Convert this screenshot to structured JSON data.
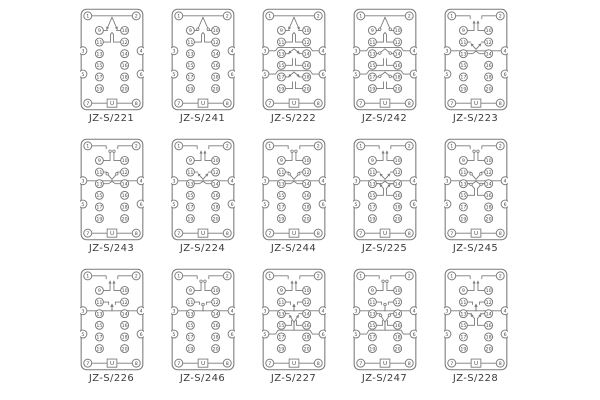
{
  "colors": {
    "line": "#7a7a7a",
    "terminal_text": "#4a4a4a",
    "label_text": "#3c3c3c",
    "background": "#ffffff"
  },
  "u_label": "U",
  "terminal_labels": [
    "1",
    "2",
    "3",
    "4",
    "5",
    "6",
    "7",
    "8",
    "9",
    "10",
    "11",
    "12",
    "13",
    "14",
    "15",
    "16",
    "17",
    "18",
    "19",
    "20"
  ],
  "diagrams": [
    {
      "label": "JZ-S/221",
      "style": "arrow",
      "contacts": [
        {
          "kind": "co",
          "common": 1,
          "a": 9,
          "b": 11
        },
        {
          "kind": "co",
          "common": 2,
          "a": 10,
          "b": 12
        }
      ]
    },
    {
      "label": "JZ-S/241",
      "style": "hook",
      "contacts": [
        {
          "kind": "co",
          "common": 1,
          "a": 9,
          "b": 11
        },
        {
          "kind": "co",
          "common": 2,
          "a": 10,
          "b": 12
        }
      ]
    },
    {
      "label": "JZ-S/222",
      "style": "arrow",
      "contacts": [
        {
          "kind": "co",
          "common": 1,
          "a": 9,
          "b": 11
        },
        {
          "kind": "co",
          "common": 2,
          "a": 10,
          "b": 12
        },
        {
          "kind": "co",
          "common": 3,
          "a": 13,
          "b": 15
        },
        {
          "kind": "co",
          "common": 4,
          "a": 14,
          "b": 16
        },
        {
          "kind": "co",
          "common": 5,
          "a": 17,
          "b": 19
        },
        {
          "kind": "co",
          "common": 6,
          "a": 18,
          "b": 20
        }
      ]
    },
    {
      "label": "JZ-S/242",
      "style": "hook",
      "contacts": [
        {
          "kind": "co",
          "common": 1,
          "a": 9,
          "b": 11
        },
        {
          "kind": "co",
          "common": 2,
          "a": 10,
          "b": 12
        },
        {
          "kind": "co",
          "common": 3,
          "a": 13,
          "b": 15
        },
        {
          "kind": "co",
          "common": 4,
          "a": 14,
          "b": 16
        },
        {
          "kind": "co",
          "common": 5,
          "a": 17,
          "b": 19
        },
        {
          "kind": "co",
          "common": 6,
          "a": 18,
          "b": 20
        }
      ]
    },
    {
      "label": "JZ-S/223",
      "style": "arrow",
      "contacts": [
        {
          "kind": "top",
          "a": 1,
          "b": 9
        },
        {
          "kind": "top",
          "a": 2,
          "b": 10
        },
        {
          "kind": "co",
          "common": 3,
          "a": 11,
          "b": 13
        },
        {
          "kind": "co",
          "common": 4,
          "a": 12,
          "b": 14
        }
      ]
    },
    {
      "label": "JZ-S/243",
      "style": "hook",
      "contacts": [
        {
          "kind": "top",
          "a": 1,
          "b": 9
        },
        {
          "kind": "top",
          "a": 2,
          "b": 10
        },
        {
          "kind": "co",
          "common": 3,
          "a": 11,
          "b": 13
        },
        {
          "kind": "co",
          "common": 4,
          "a": 12,
          "b": 14
        }
      ]
    },
    {
      "label": "JZ-S/224",
      "style": "arrow",
      "contacts": [
        {
          "kind": "top",
          "a": 1,
          "b": 9
        },
        {
          "kind": "top",
          "a": 2,
          "b": 10
        },
        {
          "kind": "co",
          "common": 3,
          "a": 11,
          "b": 13
        },
        {
          "kind": "co",
          "common": 4,
          "a": 12,
          "b": 14
        }
      ]
    },
    {
      "label": "JZ-S/244",
      "style": "hook",
      "contacts": [
        {
          "kind": "top",
          "a": 1,
          "b": 9
        },
        {
          "kind": "top",
          "a": 2,
          "b": 10
        },
        {
          "kind": "co",
          "common": 3,
          "a": 11,
          "b": 13
        },
        {
          "kind": "co",
          "common": 4,
          "a": 12,
          "b": 14
        }
      ]
    },
    {
      "label": "JZ-S/225",
      "style": "arrow",
      "contacts": [
        {
          "kind": "top",
          "a": 1,
          "b": 9
        },
        {
          "kind": "top",
          "a": 2,
          "b": 10
        },
        {
          "kind": "co",
          "common": 3,
          "a": 11,
          "b": 13
        },
        {
          "kind": "co",
          "common": 4,
          "a": 12,
          "b": 14
        },
        {
          "kind": "pair",
          "a": 13,
          "b": 15
        },
        {
          "kind": "pair",
          "a": 14,
          "b": 16
        }
      ]
    },
    {
      "label": "JZ-S/245",
      "style": "hook",
      "contacts": [
        {
          "kind": "top",
          "a": 1,
          "b": 9
        },
        {
          "kind": "top",
          "a": 2,
          "b": 10
        },
        {
          "kind": "co",
          "common": 3,
          "a": 11,
          "b": 13
        },
        {
          "kind": "co",
          "common": 4,
          "a": 12,
          "b": 14
        },
        {
          "kind": "pair",
          "a": 13,
          "b": 15
        },
        {
          "kind": "pair",
          "a": 14,
          "b": 16
        }
      ]
    },
    {
      "label": "JZ-S/226",
      "style": "arrow",
      "contacts": [
        {
          "kind": "top",
          "a": 1,
          "b": 9
        },
        {
          "kind": "top",
          "a": 2,
          "b": 10
        },
        {
          "kind": "mid",
          "a": 3,
          "b": 11
        },
        {
          "kind": "mid",
          "a": 4,
          "b": 12
        }
      ]
    },
    {
      "label": "JZ-S/246",
      "style": "hook",
      "contacts": [
        {
          "kind": "top",
          "a": 1,
          "b": 9
        },
        {
          "kind": "top",
          "a": 2,
          "b": 10
        },
        {
          "kind": "mid",
          "a": 3,
          "b": 11
        },
        {
          "kind": "mid",
          "a": 4,
          "b": 12
        }
      ]
    },
    {
      "label": "JZ-S/227",
      "style": "arrow",
      "contacts": [
        {
          "kind": "top",
          "a": 1,
          "b": 9
        },
        {
          "kind": "top",
          "a": 2,
          "b": 10
        },
        {
          "kind": "mid",
          "a": 3,
          "b": 11
        },
        {
          "kind": "mid",
          "a": 4,
          "b": 12
        },
        {
          "kind": "co",
          "common": 5,
          "a": 13,
          "b": 15
        },
        {
          "kind": "co",
          "common": 6,
          "a": 14,
          "b": 16
        }
      ]
    },
    {
      "label": "JZ-S/247",
      "style": "hook",
      "contacts": [
        {
          "kind": "top",
          "a": 1,
          "b": 9
        },
        {
          "kind": "top",
          "a": 2,
          "b": 10
        },
        {
          "kind": "mid",
          "a": 3,
          "b": 11
        },
        {
          "kind": "mid",
          "a": 4,
          "b": 12
        },
        {
          "kind": "co",
          "common": 5,
          "a": 13,
          "b": 15
        },
        {
          "kind": "co",
          "common": 6,
          "a": 14,
          "b": 16
        }
      ]
    },
    {
      "label": "JZ-S/228",
      "style": "arrow",
      "contacts": [
        {
          "kind": "top",
          "a": 1,
          "b": 9
        },
        {
          "kind": "top",
          "a": 2,
          "b": 10
        },
        {
          "kind": "mid",
          "a": 3,
          "b": 11
        },
        {
          "kind": "mid",
          "a": 4,
          "b": 12
        },
        {
          "kind": "pair",
          "a": 13,
          "b": 15
        },
        {
          "kind": "pair",
          "a": 14,
          "b": 16
        }
      ]
    }
  ]
}
